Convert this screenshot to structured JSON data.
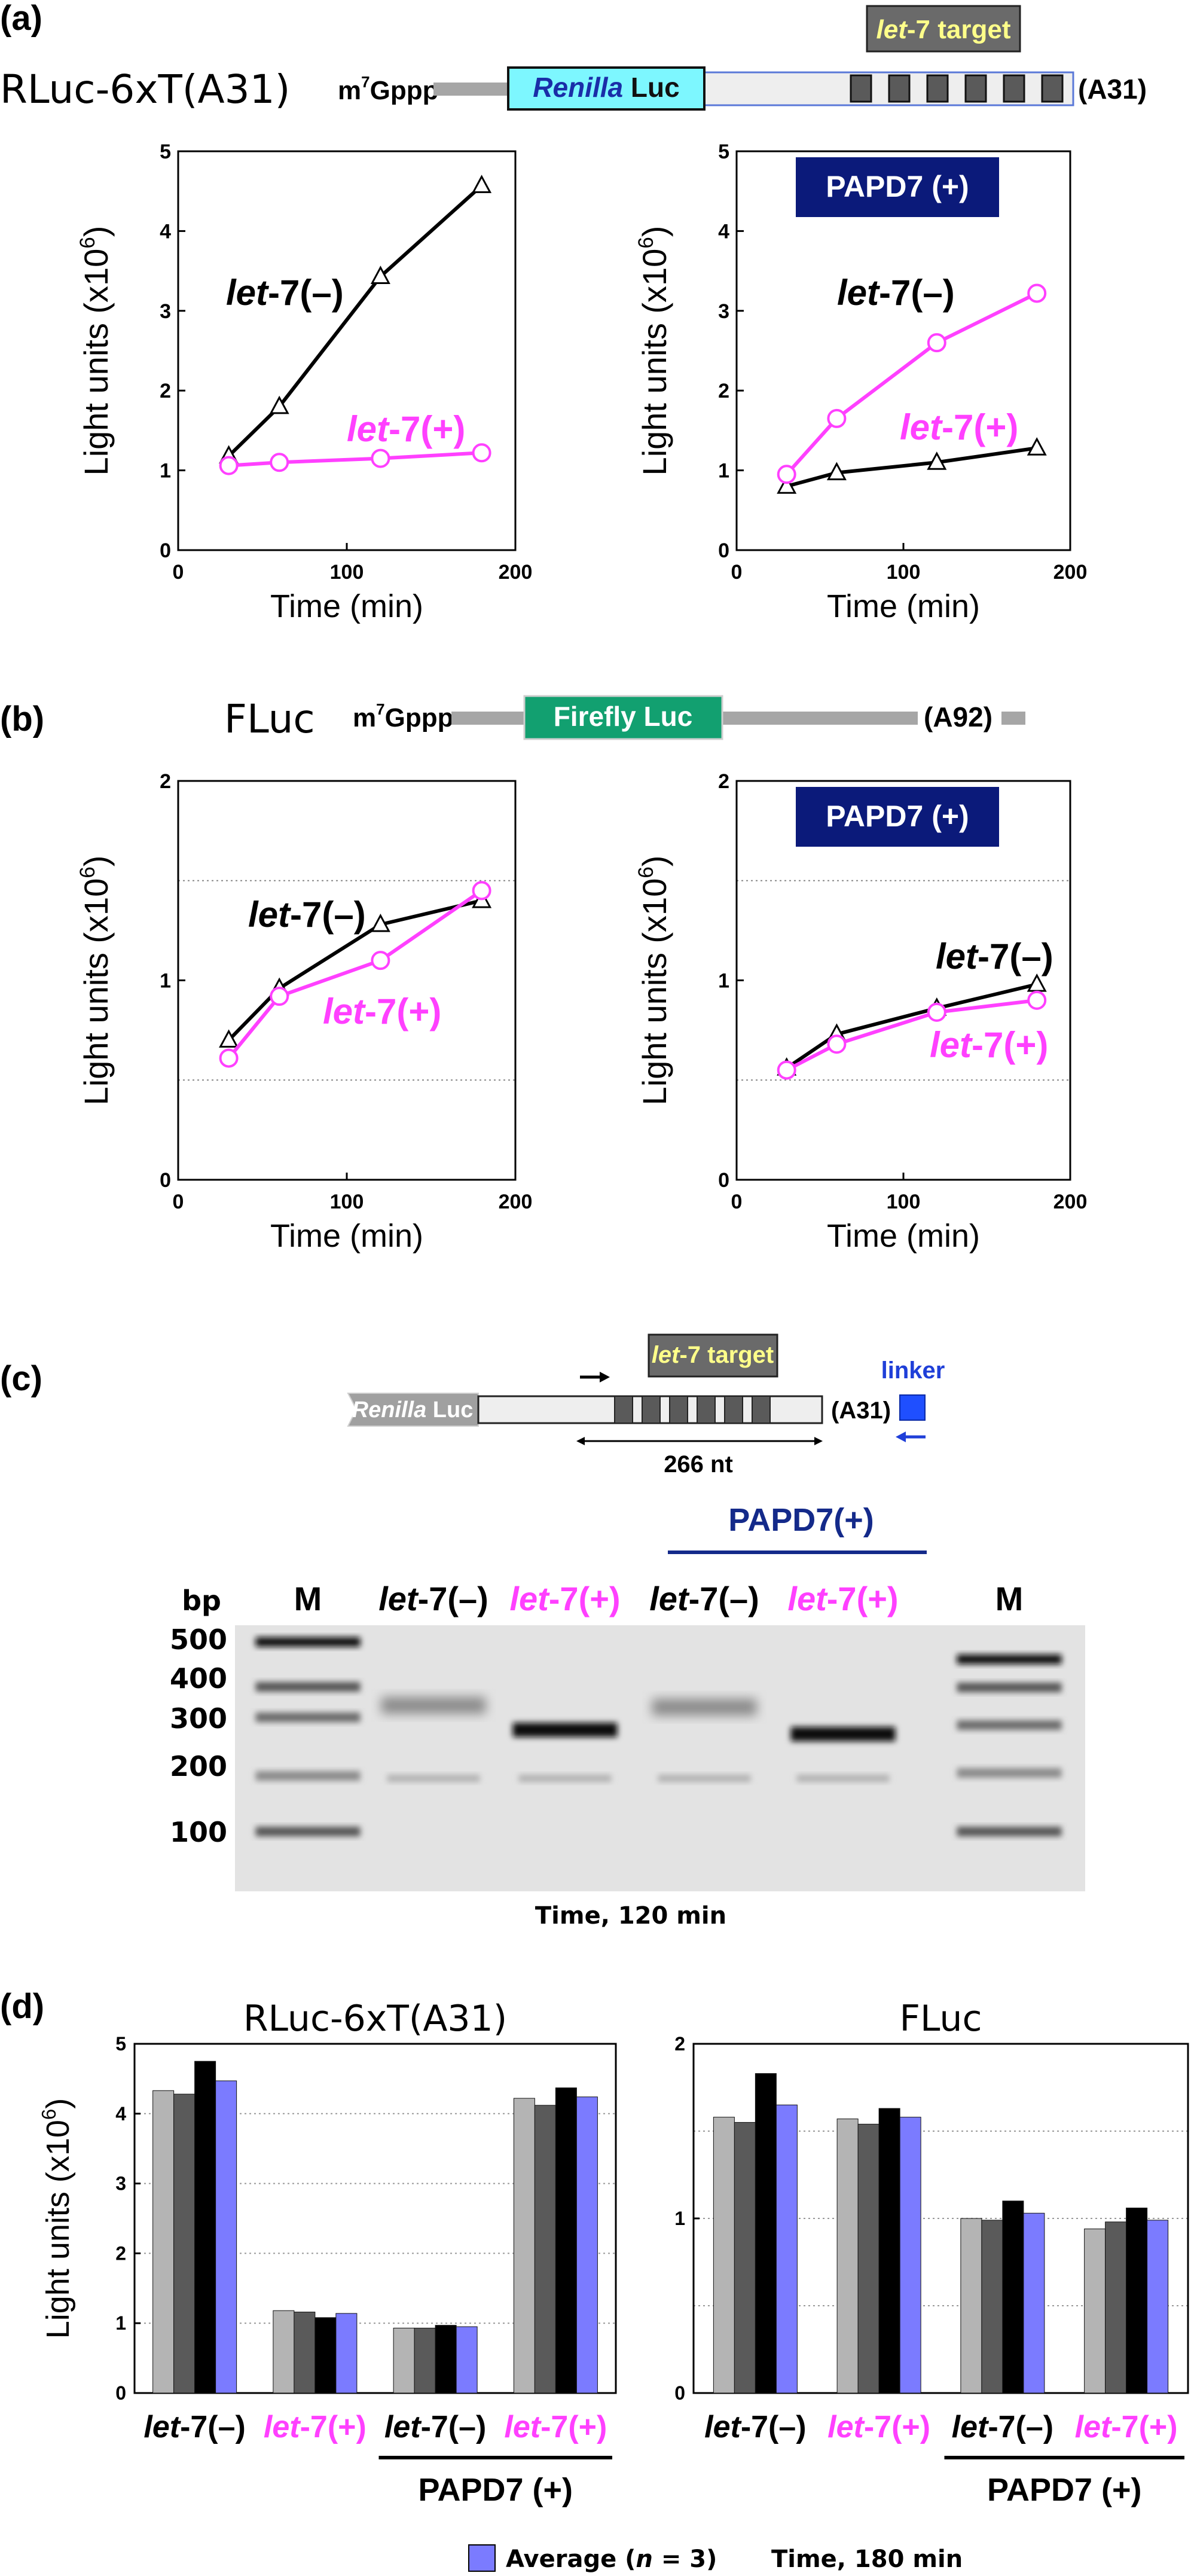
{
  "panels": {
    "a": {
      "label": "(a)",
      "construct": {
        "name": "RLuc-6xT(A31)",
        "cap": "m7Gppp",
        "cap_base": "m",
        "cap_sup": "7",
        "cap_rest": "Gppp",
        "orf_italic": "Renilla",
        "orf_rest": " Luc",
        "tail": "(A31)",
        "target_italic": "let",
        "target_rest": "-7 target"
      },
      "charts": [
        {
          "type": "line",
          "ylabel": "Light units (x10",
          "ylabel_sup": "6",
          "ylabel_end": ")",
          "xlabel": "Time (min)",
          "xlim": [
            0,
            200
          ],
          "ylim": [
            0,
            5
          ],
          "xticks": [
            "0",
            "100",
            "200"
          ],
          "yticks": [
            "0",
            "1",
            "2",
            "3",
            "4",
            "5"
          ],
          "badge": "",
          "series": [
            {
              "label_italic": "let",
              "label_rest": "-7(–)",
              "color": "#000000",
              "marker": "triangle",
              "x": [
                30,
                60,
                120,
                180
              ],
              "y": [
                1.18,
                1.8,
                3.43,
                4.57
              ]
            },
            {
              "label_italic": "let",
              "label_rest": "-7(+)",
              "color": "#ff40ff",
              "marker": "circle",
              "x": [
                30,
                60,
                120,
                180
              ],
              "y": [
                1.06,
                1.1,
                1.15,
                1.22
              ]
            }
          ]
        },
        {
          "type": "line",
          "ylabel": "Light units (x10",
          "ylabel_sup": "6",
          "ylabel_end": ")",
          "xlabel": "Time (min)",
          "xlim": [
            0,
            200
          ],
          "ylim": [
            0,
            5
          ],
          "xticks": [
            "0",
            "100",
            "200"
          ],
          "yticks": [
            "0",
            "1",
            "2",
            "3",
            "4",
            "5"
          ],
          "badge": "PAPD7 (+)",
          "series": [
            {
              "label_italic": "let",
              "label_rest": "-7(–)",
              "color": "#000000",
              "marker": "triangle",
              "x": [
                30,
                60,
                120,
                180
              ],
              "y": [
                0.8,
                0.97,
                1.1,
                1.28
              ]
            },
            {
              "label_italic": "let",
              "label_rest": "-7(+)",
              "color": "#ff40ff",
              "marker": "circle",
              "x": [
                30,
                60,
                120,
                180
              ],
              "y": [
                0.95,
                1.65,
                2.6,
                3.22
              ]
            }
          ]
        }
      ]
    },
    "b": {
      "label": "(b)",
      "construct": {
        "name": "FLuc",
        "cap_base": "m",
        "cap_sup": "7",
        "cap_rest": "Gppp",
        "orf": "Firefly Luc",
        "tail": "(A92)"
      },
      "charts": [
        {
          "type": "line",
          "ylabel": "Light units (x10",
          "ylabel_sup": "6",
          "ylabel_end": ")",
          "xlabel": "Time (min)",
          "xlim": [
            0,
            200
          ],
          "ylim": [
            0,
            2
          ],
          "xticks": [
            "0",
            "100",
            "200"
          ],
          "yticks": [
            "0",
            "1",
            "2"
          ],
          "badge": "",
          "series": [
            {
              "label_italic": "let",
              "label_rest": "-7(–)",
              "color": "#000000",
              "marker": "triangle",
              "x": [
                30,
                60,
                120,
                180
              ],
              "y": [
                0.7,
                0.96,
                1.28,
                1.4
              ]
            },
            {
              "label_italic": "let",
              "label_rest": "-7(+)",
              "color": "#ff40ff",
              "marker": "circle",
              "x": [
                30,
                60,
                120,
                180
              ],
              "y": [
                0.61,
                0.92,
                1.1,
                1.45
              ]
            }
          ]
        },
        {
          "type": "line",
          "ylabel": "Light units (x10",
          "ylabel_sup": "6",
          "ylabel_end": ")",
          "xlabel": "Time (min)",
          "xlim": [
            0,
            200
          ],
          "ylim": [
            0,
            2
          ],
          "xticks": [
            "0",
            "100",
            "200"
          ],
          "yticks": [
            "0",
            "1",
            "2"
          ],
          "badge": "PAPD7 (+)",
          "series": [
            {
              "label_italic": "let",
              "label_rest": "-7(–)",
              "color": "#000000",
              "marker": "triangle",
              "x": [
                30,
                60,
                120,
                180
              ],
              "y": [
                0.56,
                0.73,
                0.86,
                0.98
              ]
            },
            {
              "label_italic": "let",
              "label_rest": "-7(+)",
              "color": "#ff40ff",
              "marker": "circle",
              "x": [
                30,
                60,
                120,
                180
              ],
              "y": [
                0.55,
                0.68,
                0.84,
                0.9
              ]
            }
          ]
        }
      ]
    },
    "c": {
      "label": "(c)",
      "construct": {
        "orf_italic": "Renilla",
        "orf_rest": " Luc",
        "target_italic": "let",
        "target_rest": "-7 target",
        "tail": "(A31)",
        "linker": "linker",
        "length": "266 nt"
      },
      "gel": {
        "papd7": "PAPD7(+)",
        "bp": "bp",
        "markers": [
          "500",
          "400",
          "300",
          "200",
          "100"
        ],
        "lanes": [
          {
            "italic": "",
            "rest": "M",
            "color": "#000000"
          },
          {
            "italic": "let",
            "rest": "-7(–)",
            "color": "#000000"
          },
          {
            "italic": "let",
            "rest": "-7(+)",
            "color": "#ff40ff"
          },
          {
            "italic": "let",
            "rest": "-7(–)",
            "color": "#000000"
          },
          {
            "italic": "let",
            "rest": "-7(+)",
            "color": "#ff40ff"
          },
          {
            "italic": "",
            "rest": "M",
            "color": "#000000"
          }
        ],
        "caption": "Time, 120 min"
      }
    },
    "d": {
      "label": "(d)",
      "legend_pre": "Average (",
      "legend_italic": "n",
      "legend_post": " = 3)",
      "legend_color": "#7b7bff",
      "time_note": "Time, 180 min",
      "charts": [
        {
          "type": "bar",
          "title": "RLuc-6xT(A31)",
          "ylabel": "Light units (x10",
          "ylabel_sup": "6",
          "ylabel_end": ")",
          "ylim": [
            0,
            5
          ],
          "yticks": [
            "0",
            "1",
            "2",
            "3",
            "4",
            "5"
          ],
          "bar_colors": [
            "#b4b4b4",
            "#5a5a5a",
            "#000000",
            "#7b7bff"
          ],
          "group_bracket": "PAPD7 (+)",
          "groups": [
            {
              "italic": "let",
              "rest": "-7(–)",
              "color": "#000000",
              "values": [
                4.33,
                4.28,
                4.75,
                4.47
              ]
            },
            {
              "italic": "let",
              "rest": "-7(+)",
              "color": "#ff40ff",
              "values": [
                1.18,
                1.16,
                1.08,
                1.14
              ]
            },
            {
              "italic": "let",
              "rest": "-7(–)",
              "color": "#000000",
              "values": [
                0.93,
                0.93,
                0.97,
                0.95
              ]
            },
            {
              "italic": "let",
              "rest": "-7(+)",
              "color": "#ff40ff",
              "values": [
                4.22,
                4.12,
                4.37,
                4.24
              ]
            }
          ]
        },
        {
          "type": "bar",
          "title": "FLuc",
          "ylim": [
            0,
            2
          ],
          "yticks": [
            "0",
            "1",
            "2"
          ],
          "bar_colors": [
            "#b4b4b4",
            "#5a5a5a",
            "#000000",
            "#7b7bff"
          ],
          "group_bracket": "PAPD7 (+)",
          "groups": [
            {
              "italic": "let",
              "rest": "-7(–)",
              "color": "#000000",
              "values": [
                1.58,
                1.55,
                1.83,
                1.65
              ]
            },
            {
              "italic": "let",
              "rest": "-7(+)",
              "color": "#ff40ff",
              "values": [
                1.57,
                1.54,
                1.63,
                1.58
              ]
            },
            {
              "italic": "let",
              "rest": "-7(–)",
              "color": "#000000",
              "values": [
                1.0,
                0.99,
                1.1,
                1.03
              ]
            },
            {
              "italic": "let",
              "rest": "-7(+)",
              "color": "#ff40ff",
              "values": [
                0.94,
                0.98,
                1.06,
                0.99
              ]
            }
          ]
        }
      ]
    }
  }
}
